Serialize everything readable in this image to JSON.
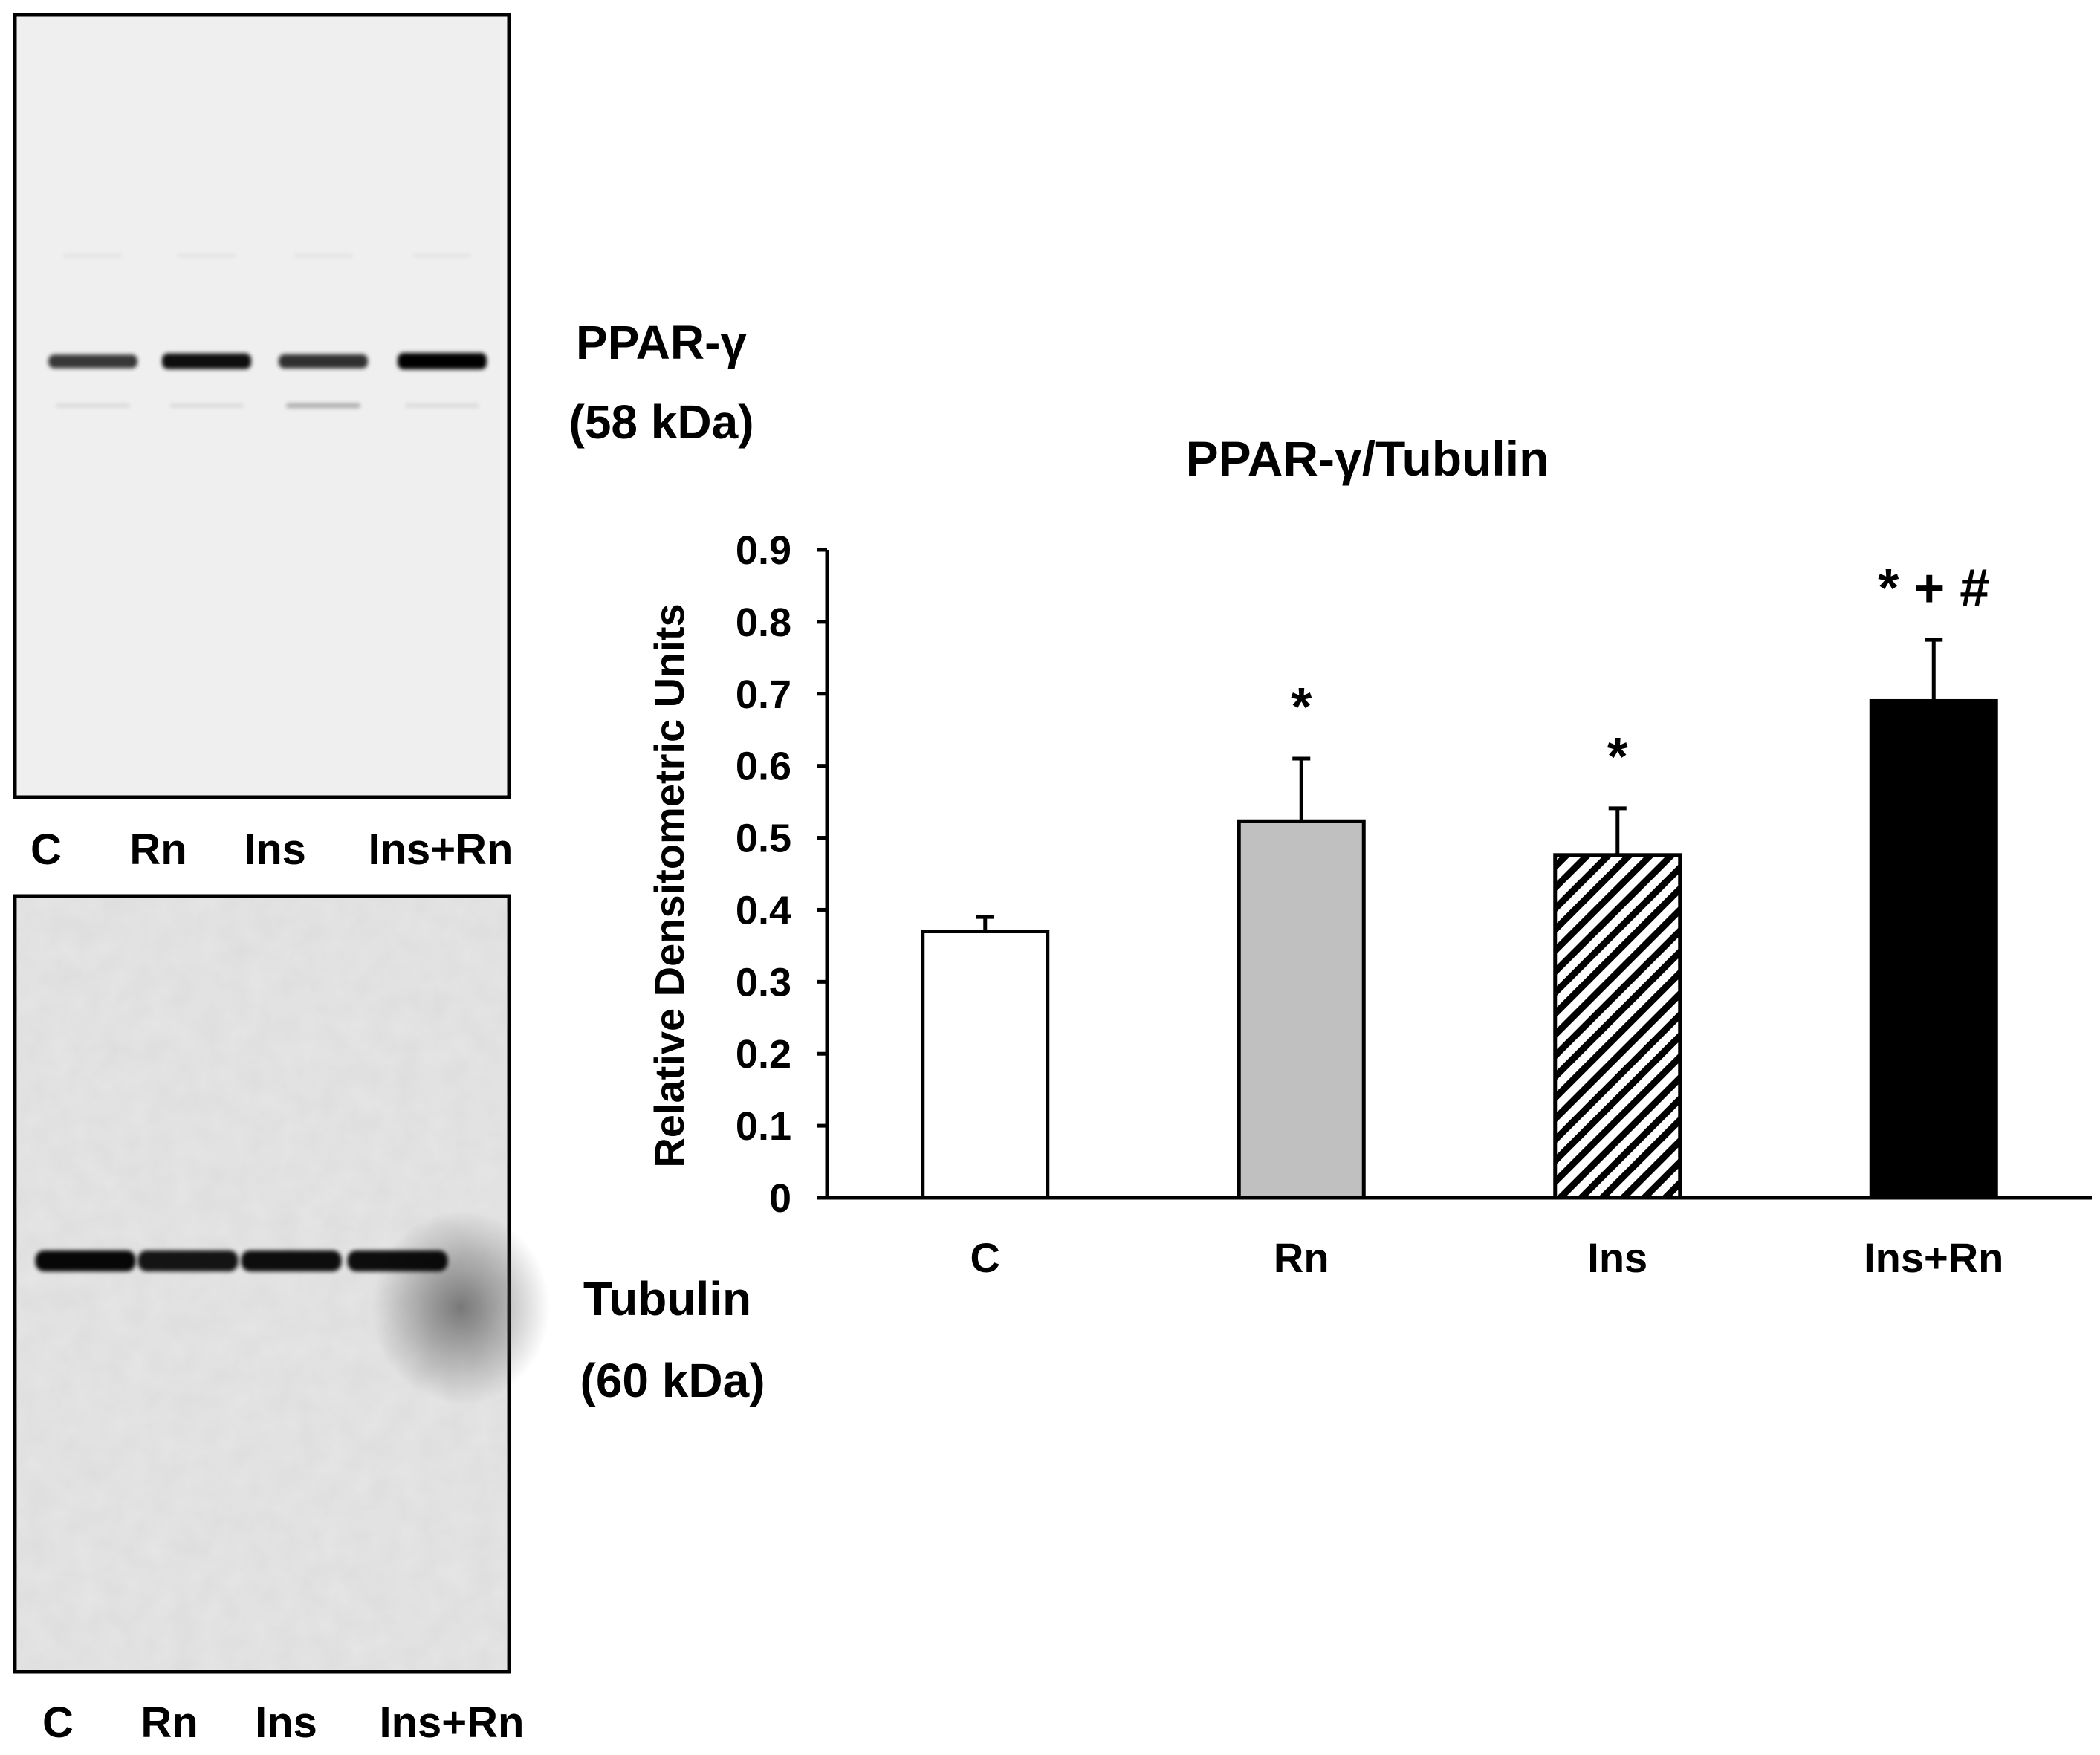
{
  "blots": {
    "top": {
      "label": "PPAR-γ",
      "weight": "(58 kDa)",
      "lanes": [
        "C",
        "Rn",
        "Ins",
        "Ins+Rn"
      ],
      "band_intensity": [
        0.65,
        0.9,
        0.7,
        1.0
      ]
    },
    "bottom": {
      "label": "Tubulin",
      "weight": "(60 kDa)",
      "lanes": [
        "C",
        "Rn",
        "Ins",
        "Ins+Rn"
      ],
      "band_intensity": [
        0.95,
        0.85,
        0.9,
        0.9
      ]
    }
  },
  "chart_data": {
    "type": "bar",
    "title": "PPAR-γ/Tubulin",
    "xlabel": "",
    "ylabel": "Relative Densitometric Units",
    "categories": [
      "C",
      "Rn",
      "Ins",
      "Ins+Rn"
    ],
    "values": [
      0.37,
      0.523,
      0.476,
      0.69
    ],
    "errors": [
      0.02,
      0.087,
      0.065,
      0.085
    ],
    "significance": [
      "",
      "*",
      "*",
      "* + #"
    ],
    "fills": [
      "#ffffff",
      "#c0c0c0",
      "hatch",
      "#000000"
    ],
    "ylim": [
      0,
      0.9
    ],
    "yticks": [
      "0",
      "0.1",
      "0.2",
      "0.3",
      "0.4",
      "0.5",
      "0.6",
      "0.7",
      "0.8",
      "0.9"
    ],
    "grid": false,
    "legend": "none"
  }
}
